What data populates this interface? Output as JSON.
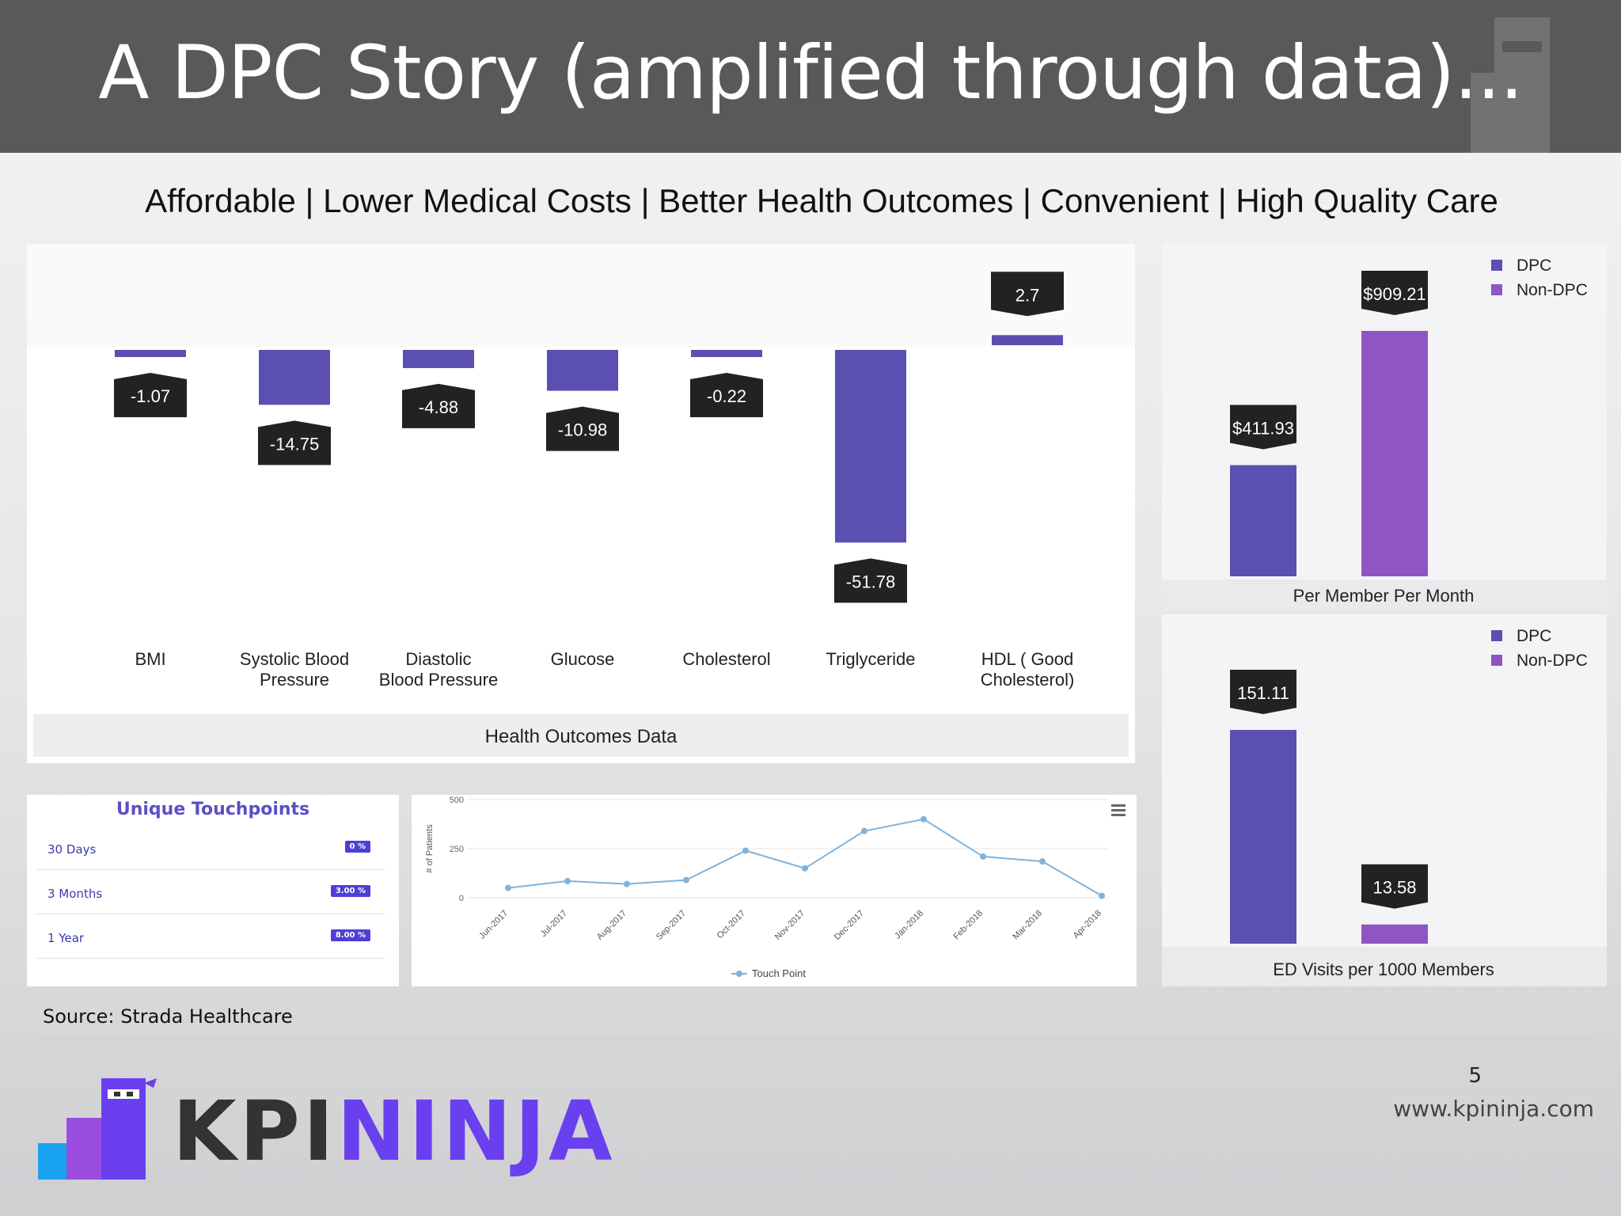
{
  "slide": {
    "title": "A DPC Story (amplified through data)...",
    "subtitle": "Affordable | Lower Medical Costs | Better Health Outcomes | Convenient | High Quality Care",
    "source": "Source: Strada Healthcare",
    "page_number": "5",
    "website": "www.kpininja.com",
    "logo": {
      "part1": "KPI",
      "part2": "NINJA",
      "color1": "#333333",
      "color2": "#6a3ff0"
    }
  },
  "colors": {
    "dpc": "#5b4fb1",
    "non_dpc": "#8f55c2",
    "label_box": "#222222",
    "line": "#7fb3dc"
  },
  "touchpoints": {
    "title": "Unique Touchpoints",
    "rows": [
      {
        "label": "30 Days",
        "badge": "0 %"
      },
      {
        "label": "3 Months",
        "badge": "3.00 %"
      },
      {
        "label": "1 Year",
        "badge": "8.00 %"
      }
    ]
  },
  "chart_data": [
    {
      "type": "bar",
      "title": "Health Outcomes Data",
      "categories": [
        "BMI",
        "Systolic Blood Pressure",
        "Diastolic Blood Pressure",
        "Glucose",
        "Cholesterol",
        "Triglyceride",
        "HDL ( Good Cholesterol)"
      ],
      "values": [
        -1.07,
        -14.75,
        -4.88,
        -10.98,
        -0.22,
        -51.78,
        2.7
      ],
      "data_labels": [
        "-1.07",
        "-14.75",
        "-4.88",
        "-10.98",
        "-0.22",
        "-51.78",
        "2.7"
      ]
    },
    {
      "type": "bar",
      "title": "Per Member Per Month",
      "categories": [
        "DPC",
        "Non-DPC"
      ],
      "series": [
        {
          "name": "DPC",
          "values": [
            411.93,
            null
          ]
        },
        {
          "name": "Non-DPC",
          "values": [
            null,
            909.21
          ]
        }
      ],
      "data_labels": [
        "$411.93",
        "$909.21"
      ],
      "legend": "top-right"
    },
    {
      "type": "bar",
      "title": "ED Visits per 1000 Members",
      "categories": [
        "DPC",
        "Non-DPC"
      ],
      "series": [
        {
          "name": "DPC",
          "values": [
            151.11,
            null
          ]
        },
        {
          "name": "Non-DPC",
          "values": [
            null,
            13.58
          ]
        }
      ],
      "data_labels": [
        "151.11",
        "13.58"
      ],
      "legend": "top-right"
    },
    {
      "type": "line",
      "x": [
        "Jun-2017",
        "Jul-2017",
        "Aug-2017",
        "Sep-2017",
        "Oct-2017",
        "Nov-2017",
        "Dec-2017",
        "Jan-2018",
        "Feb-2018",
        "Mar-2018",
        "Apr-2018"
      ],
      "series": [
        {
          "name": "Touch Point",
          "values": [
            50,
            85,
            70,
            90,
            240,
            150,
            340,
            400,
            210,
            185,
            10
          ]
        }
      ],
      "ylabel": "# of Patients",
      "yticks": [
        "0",
        "250",
        "500"
      ],
      "ylim": [
        0,
        500
      ],
      "legend": "bottom",
      "menu_icon": "hamburger-menu-icon"
    }
  ]
}
